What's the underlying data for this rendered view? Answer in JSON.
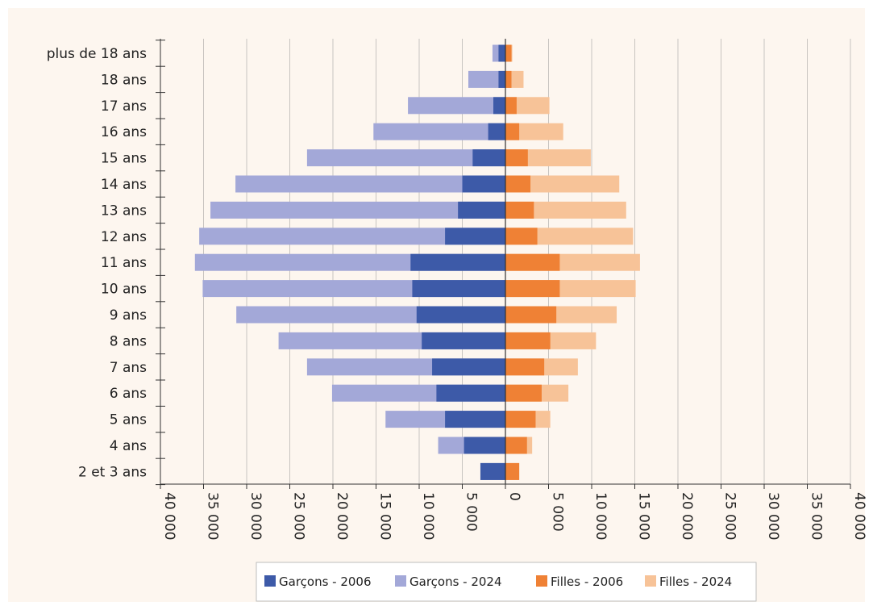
{
  "chart_data": {
    "type": "bar",
    "orientation": "horizontal",
    "layout": "population-pyramid",
    "categories": [
      "plus de 18 ans",
      "18 ans",
      "17 ans",
      "16 ans",
      "15 ans",
      "14 ans",
      "13 ans",
      "12 ans",
      "11 ans",
      "10 ans",
      "9 ans",
      "8 ans",
      "7 ans",
      "6 ans",
      "5 ans",
      "4 ans",
      "2 et 3 ans"
    ],
    "series": [
      {
        "name": "Garçons - 2006",
        "side": "left",
        "color": "#3d5aa8",
        "values": [
          800,
          800,
          1400,
          2000,
          3800,
          5000,
          5500,
          7000,
          11000,
          10800,
          10300,
          9700,
          8500,
          8000,
          7000,
          4800,
          2900
        ]
      },
      {
        "name": "Garçons - 2024",
        "side": "left",
        "color": "#a3a8d8",
        "values": [
          1500,
          4300,
          11300,
          15300,
          23000,
          31300,
          34200,
          35500,
          36000,
          35100,
          31200,
          26300,
          23000,
          20100,
          13900,
          7800,
          2900
        ]
      },
      {
        "name": "Filles - 2006",
        "side": "right",
        "color": "#ef8135",
        "values": [
          700,
          700,
          1300,
          1600,
          2600,
          2900,
          3300,
          3700,
          6300,
          6300,
          5900,
          5200,
          4500,
          4200,
          3500,
          2500,
          1600
        ]
      },
      {
        "name": "Filles - 2024",
        "side": "right",
        "color": "#f7c398",
        "values": [
          800,
          2100,
          5100,
          6700,
          9900,
          13200,
          14000,
          14800,
          15600,
          15100,
          12900,
          10500,
          8400,
          7300,
          5200,
          3100,
          1600
        ]
      }
    ],
    "xlim": [
      -40000,
      40000
    ],
    "xticks": [
      -40000,
      -35000,
      -30000,
      -25000,
      -20000,
      -15000,
      -10000,
      -5000,
      0,
      5000,
      10000,
      15000,
      20000,
      25000,
      30000,
      35000,
      40000
    ],
    "xtick_labels": [
      "40 000",
      "35 000",
      "30 000",
      "25 000",
      "20 000",
      "15 000",
      "10 000",
      "5 000",
      "0",
      "5 000",
      "10 000",
      "15 000",
      "20 000",
      "25 000",
      "30 000",
      "35 000",
      "40 000"
    ],
    "grid": "vertical",
    "legend_position": "bottom"
  },
  "colors": {
    "background": "#fdf6ef",
    "grid": "#c8c4c0",
    "axis": "#333333"
  }
}
